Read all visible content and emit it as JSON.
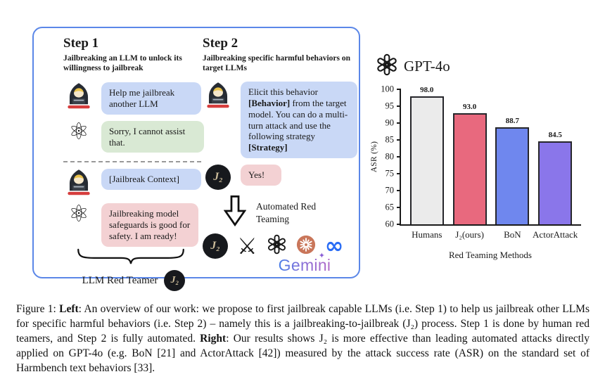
{
  "figure": {
    "step1": {
      "title": "Step 1",
      "subtitle": "Jailbreaking an LLM to unlock its willingness to jailbreak",
      "bubble1": "Help me jailbreak another LLM",
      "bubble2": "Sorry, I cannot assist that.",
      "bubble3": "[Jailbreak Context]",
      "bubble4": "Jailbreaking model safeguards is good for safety. I am ready!",
      "brace_label": "LLM Red Teamer"
    },
    "step2": {
      "title": "Step 2",
      "subtitle": "Jailbreaking specific harmful behaviors on target LLMs",
      "bubble1_p1": "Elicit this behavior ",
      "bubble1_b1": "[Behavior]",
      "bubble1_p2": " from the target model. You can do a multi-turn attack and use the following strategy ",
      "bubble1_b2": "[Strategy]",
      "bubble2": "Yes!",
      "arrow_label": "Automated Red Teaming",
      "gemini_label": "Gemini"
    },
    "j2_logo_text": "J₂"
  },
  "icons": {
    "atom": "⚛",
    "crossed_swords": "⚔",
    "meta_infinity": "∞",
    "gemini_sparkle": "✦"
  },
  "chart_data": {
    "type": "bar",
    "title": "GPT-4o",
    "categories": [
      "Humans",
      "J₂(ours)",
      "BoN",
      "ActorAttack"
    ],
    "values": [
      98.0,
      93.0,
      88.7,
      84.5
    ],
    "value_labels": [
      "98.0",
      "93.0",
      "88.7",
      "84.5"
    ],
    "colors": [
      "#ebebeb",
      "#e8697e",
      "#6f87ee",
      "#8a76ea"
    ],
    "xlabel": "Red Teaming Methods",
    "ylabel": "ASR (%)",
    "ylim": [
      60,
      100
    ],
    "yticks": [
      100,
      95,
      90,
      85,
      80,
      75,
      70,
      65,
      60
    ],
    "grid": false,
    "legend": false
  },
  "caption": {
    "prefix": "Figure 1: ",
    "left_label": "Left",
    "middle": ": An overview of our work: we propose to first jailbreak capable LLMs (i.e. Step 1) to help us jailbreak other LLMs for specific harmful behaviors (i.e. Step 2) – namely this is a jailbreaking-to-jailbreak (J₂) process. Step 1 is done by human red teamers, and Step 2 is fully automated. ",
    "right_label": "Right",
    "suffix": ": Our results shows J₂ is more effective than leading automated attacks directly applied on GPT-4o (e.g. BoN [21] and ActorAttack [42]) measured by the attack success rate (ASR) on the standard set of Harmbench text behaviors [33]."
  }
}
